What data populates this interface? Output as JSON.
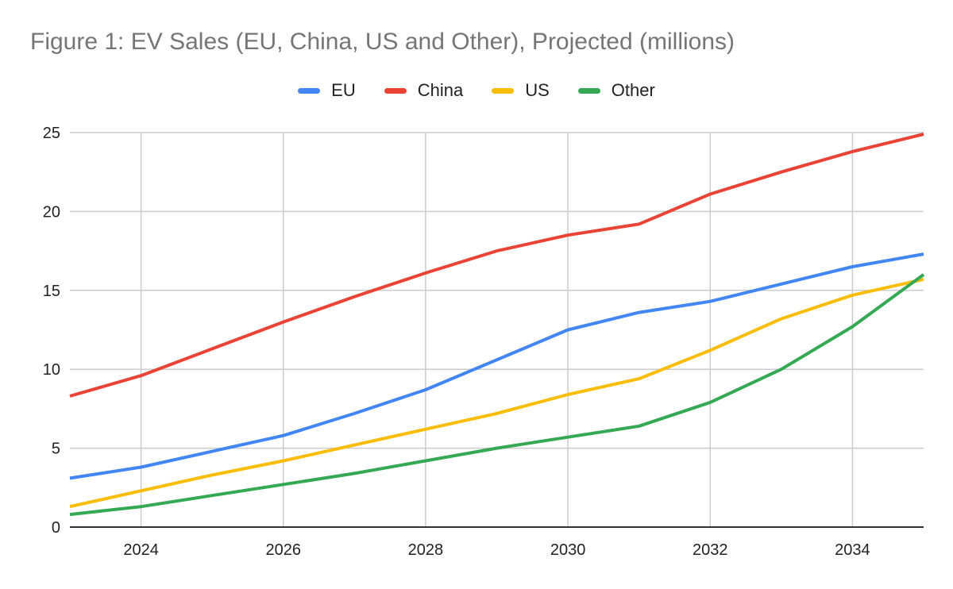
{
  "chart_data": {
    "type": "line",
    "title": "Figure 1: EV Sales (EU, China, US and Other), Projected (millions)",
    "xlabel": "",
    "ylabel": "",
    "x": [
      2023,
      2024,
      2025,
      2026,
      2027,
      2028,
      2029,
      2030,
      2031,
      2032,
      2033,
      2034,
      2035
    ],
    "xticks": [
      "2024",
      "2026",
      "2028",
      "2030",
      "2032",
      "2034"
    ],
    "yticks": [
      "0",
      "5",
      "10",
      "15",
      "20",
      "25"
    ],
    "xlim": [
      2023,
      2035
    ],
    "ylim": [
      0,
      25
    ],
    "grid": true,
    "legend_position": "top-center",
    "series": [
      {
        "name": "EU",
        "color": "#4285F4",
        "values": [
          3.1,
          3.8,
          4.8,
          5.8,
          7.2,
          8.7,
          10.6,
          12.5,
          13.6,
          14.3,
          15.4,
          16.5,
          17.3
        ]
      },
      {
        "name": "China",
        "color": "#EA4335",
        "values": [
          8.3,
          9.6,
          11.3,
          13.0,
          14.6,
          16.1,
          17.5,
          18.5,
          19.2,
          21.1,
          22.5,
          23.8,
          24.9
        ]
      },
      {
        "name": "US",
        "color": "#FBBC04",
        "values": [
          1.3,
          2.3,
          3.3,
          4.2,
          5.2,
          6.2,
          7.2,
          8.4,
          9.4,
          11.2,
          13.2,
          14.7,
          15.7
        ]
      },
      {
        "name": "Other",
        "color": "#34A853",
        "values": [
          0.8,
          1.3,
          2.0,
          2.7,
          3.4,
          4.2,
          5.0,
          5.7,
          6.4,
          7.9,
          10.0,
          12.7,
          16.0
        ]
      }
    ]
  }
}
